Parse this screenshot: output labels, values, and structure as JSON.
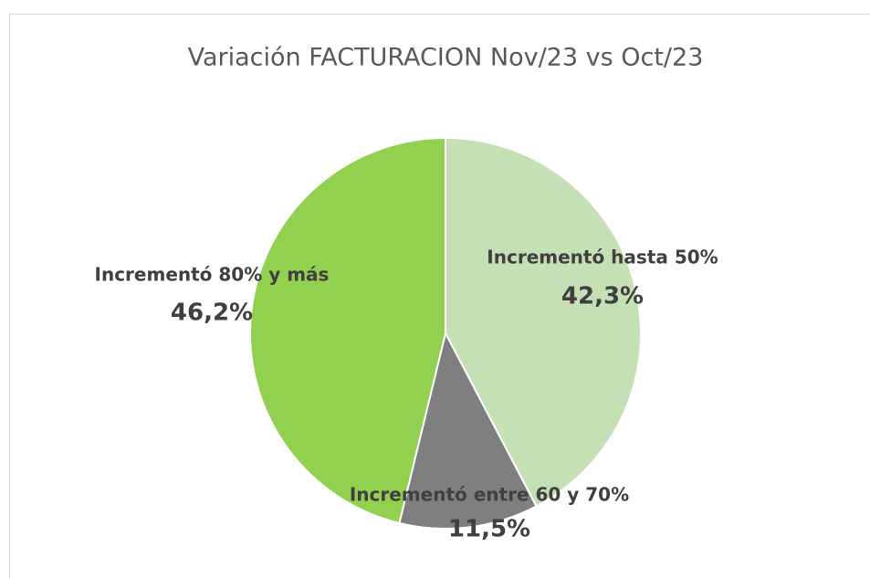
{
  "chart_data": {
    "type": "pie",
    "title": "Variación FACTURACION Nov/23 vs Oct/23",
    "categories": [
      "Incrementó hasta 50%",
      "Incrementó entre 60 y 70%",
      "Incrementó 80% y más"
    ],
    "values": [
      42.3,
      11.5,
      46.2
    ],
    "value_labels": [
      "42,3%",
      "11,5%",
      "46,2%"
    ],
    "colors": [
      "#c5e0b4",
      "#7f7f7f",
      "#92d050"
    ]
  }
}
